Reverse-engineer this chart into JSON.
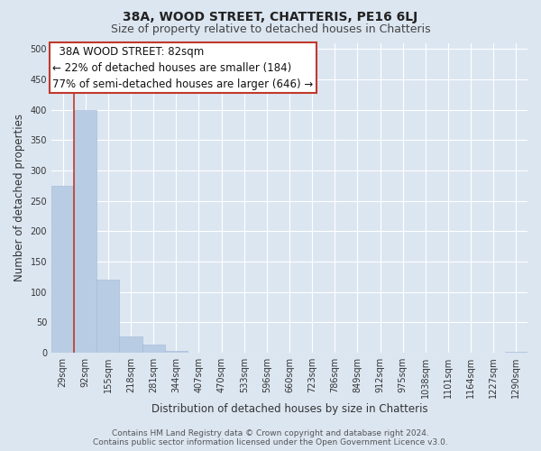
{
  "title": "38A, WOOD STREET, CHATTERIS, PE16 6LJ",
  "subtitle": "Size of property relative to detached houses in Chatteris",
  "xlabel": "Distribution of detached houses by size in Chatteris",
  "ylabel": "Number of detached properties",
  "bar_labels": [
    "29sqm",
    "92sqm",
    "155sqm",
    "218sqm",
    "281sqm",
    "344sqm",
    "407sqm",
    "470sqm",
    "533sqm",
    "596sqm",
    "660sqm",
    "723sqm",
    "786sqm",
    "849sqm",
    "912sqm",
    "975sqm",
    "1038sqm",
    "1101sqm",
    "1164sqm",
    "1227sqm",
    "1290sqm"
  ],
  "bar_values": [
    275,
    400,
    120,
    27,
    13,
    3,
    0,
    0,
    0,
    0,
    0,
    0,
    0,
    0,
    0,
    0,
    0,
    0,
    0,
    0,
    2
  ],
  "bar_color": "#b8cce4",
  "bar_edge_color": "#a0b8d8",
  "vline_color": "#c0392b",
  "ylim": [
    0,
    510
  ],
  "yticks": [
    0,
    50,
    100,
    150,
    200,
    250,
    300,
    350,
    400,
    450,
    500
  ],
  "annotation_title": "38A WOOD STREET: 82sqm",
  "annotation_line1": "← 22% of detached houses are smaller (184)",
  "annotation_line2": "77% of semi-detached houses are larger (646) →",
  "annotation_box_color": "#ffffff",
  "annotation_box_edge_color": "#c0392b",
  "footer_line1": "Contains HM Land Registry data © Crown copyright and database right 2024.",
  "footer_line2": "Contains public sector information licensed under the Open Government Licence v3.0.",
  "plot_bg_color": "#dce6f1",
  "figure_bg_color": "#dce6f1",
  "grid_color": "#ffffff",
  "title_fontsize": 10,
  "subtitle_fontsize": 9,
  "xlabel_fontsize": 8.5,
  "ylabel_fontsize": 8.5,
  "tick_fontsize": 7,
  "annotation_title_fontsize": 8.5,
  "annotation_body_fontsize": 8.5,
  "footer_fontsize": 6.5
}
